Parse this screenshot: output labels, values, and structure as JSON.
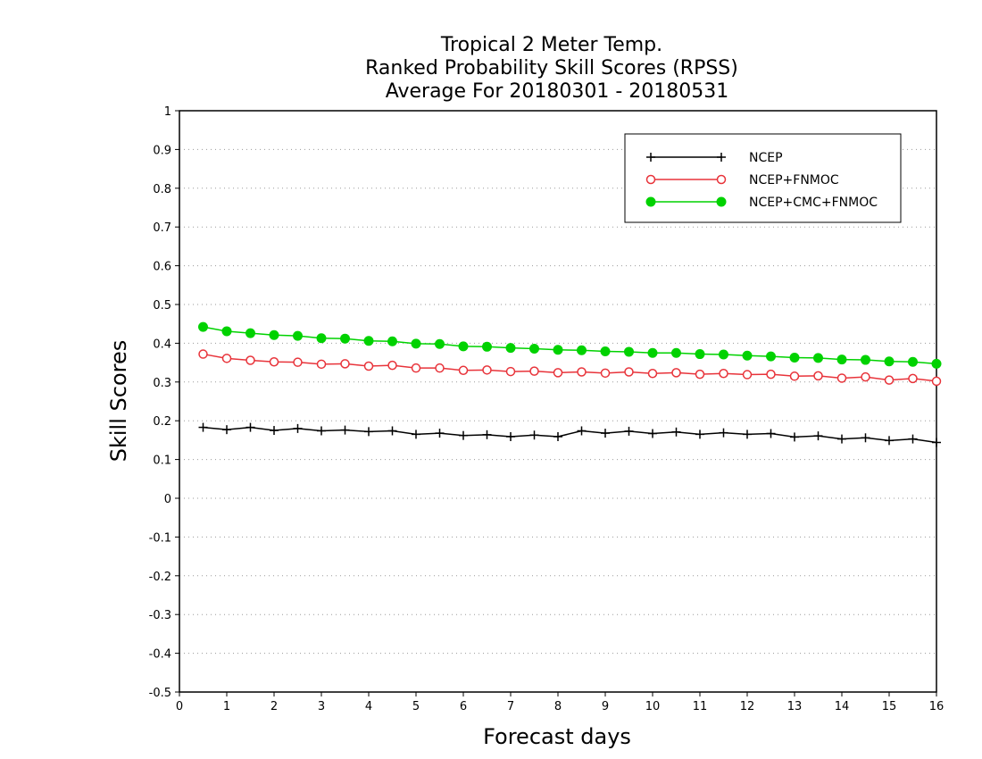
{
  "chart_data": {
    "type": "line",
    "title_lines": [
      "Tropical 2 Meter Temp.",
      "Ranked Probability Skill Scores (RPSS)",
      "Average For 20180301 - 20180531"
    ],
    "xlabel": "Forecast days",
    "ylabel": "Skill Scores",
    "xlim": [
      0,
      16
    ],
    "ylim": [
      -0.5,
      1
    ],
    "x_ticks": [
      "0",
      "1",
      "2",
      "3",
      "4",
      "5",
      "6",
      "7",
      "8",
      "9",
      "10",
      "11",
      "12",
      "13",
      "14",
      "15",
      "16"
    ],
    "y_ticks": [
      "-0.5",
      "-0.4",
      "-0.3",
      "-0.2",
      "-0.1",
      "0",
      "0.1",
      "0.2",
      "0.3",
      "0.4",
      "0.5",
      "0.6",
      "0.7",
      "0.8",
      "0.9",
      "1"
    ],
    "grid": "horizontal dotted",
    "legend_position": "top-right",
    "x": [
      0.5,
      1,
      1.5,
      2,
      2.5,
      3,
      3.5,
      4,
      4.5,
      5,
      5.5,
      6,
      6.5,
      7,
      7.5,
      8,
      8.5,
      9,
      9.5,
      10,
      10.5,
      11,
      11.5,
      12,
      12.5,
      13,
      13.5,
      14,
      14.5,
      15,
      15.5,
      16
    ],
    "series": [
      {
        "name": "NCEP",
        "color": "#000000",
        "marker": "plus",
        "values": [
          0.183,
          0.177,
          0.183,
          0.175,
          0.18,
          0.174,
          0.176,
          0.172,
          0.174,
          0.165,
          0.168,
          0.162,
          0.164,
          0.159,
          0.163,
          0.159,
          0.174,
          0.168,
          0.173,
          0.167,
          0.171,
          0.165,
          0.169,
          0.165,
          0.167,
          0.158,
          0.161,
          0.153,
          0.156,
          0.149,
          0.153,
          0.144
        ]
      },
      {
        "name": "NCEP+FNMOC",
        "color": "#e8333a",
        "marker": "open-circle",
        "values": [
          0.372,
          0.361,
          0.356,
          0.352,
          0.351,
          0.346,
          0.347,
          0.341,
          0.343,
          0.336,
          0.336,
          0.33,
          0.331,
          0.327,
          0.328,
          0.324,
          0.326,
          0.323,
          0.326,
          0.322,
          0.324,
          0.32,
          0.322,
          0.319,
          0.32,
          0.315,
          0.316,
          0.31,
          0.313,
          0.305,
          0.309,
          0.302
        ]
      },
      {
        "name": "NCEP+CMC+FNMOC",
        "color": "#00d200",
        "marker": "filled-circle",
        "values": [
          0.442,
          0.431,
          0.426,
          0.421,
          0.419,
          0.413,
          0.412,
          0.406,
          0.405,
          0.399,
          0.398,
          0.392,
          0.391,
          0.388,
          0.386,
          0.383,
          0.382,
          0.379,
          0.378,
          0.375,
          0.375,
          0.372,
          0.371,
          0.368,
          0.366,
          0.363,
          0.362,
          0.358,
          0.357,
          0.353,
          0.352,
          0.347
        ]
      }
    ]
  }
}
